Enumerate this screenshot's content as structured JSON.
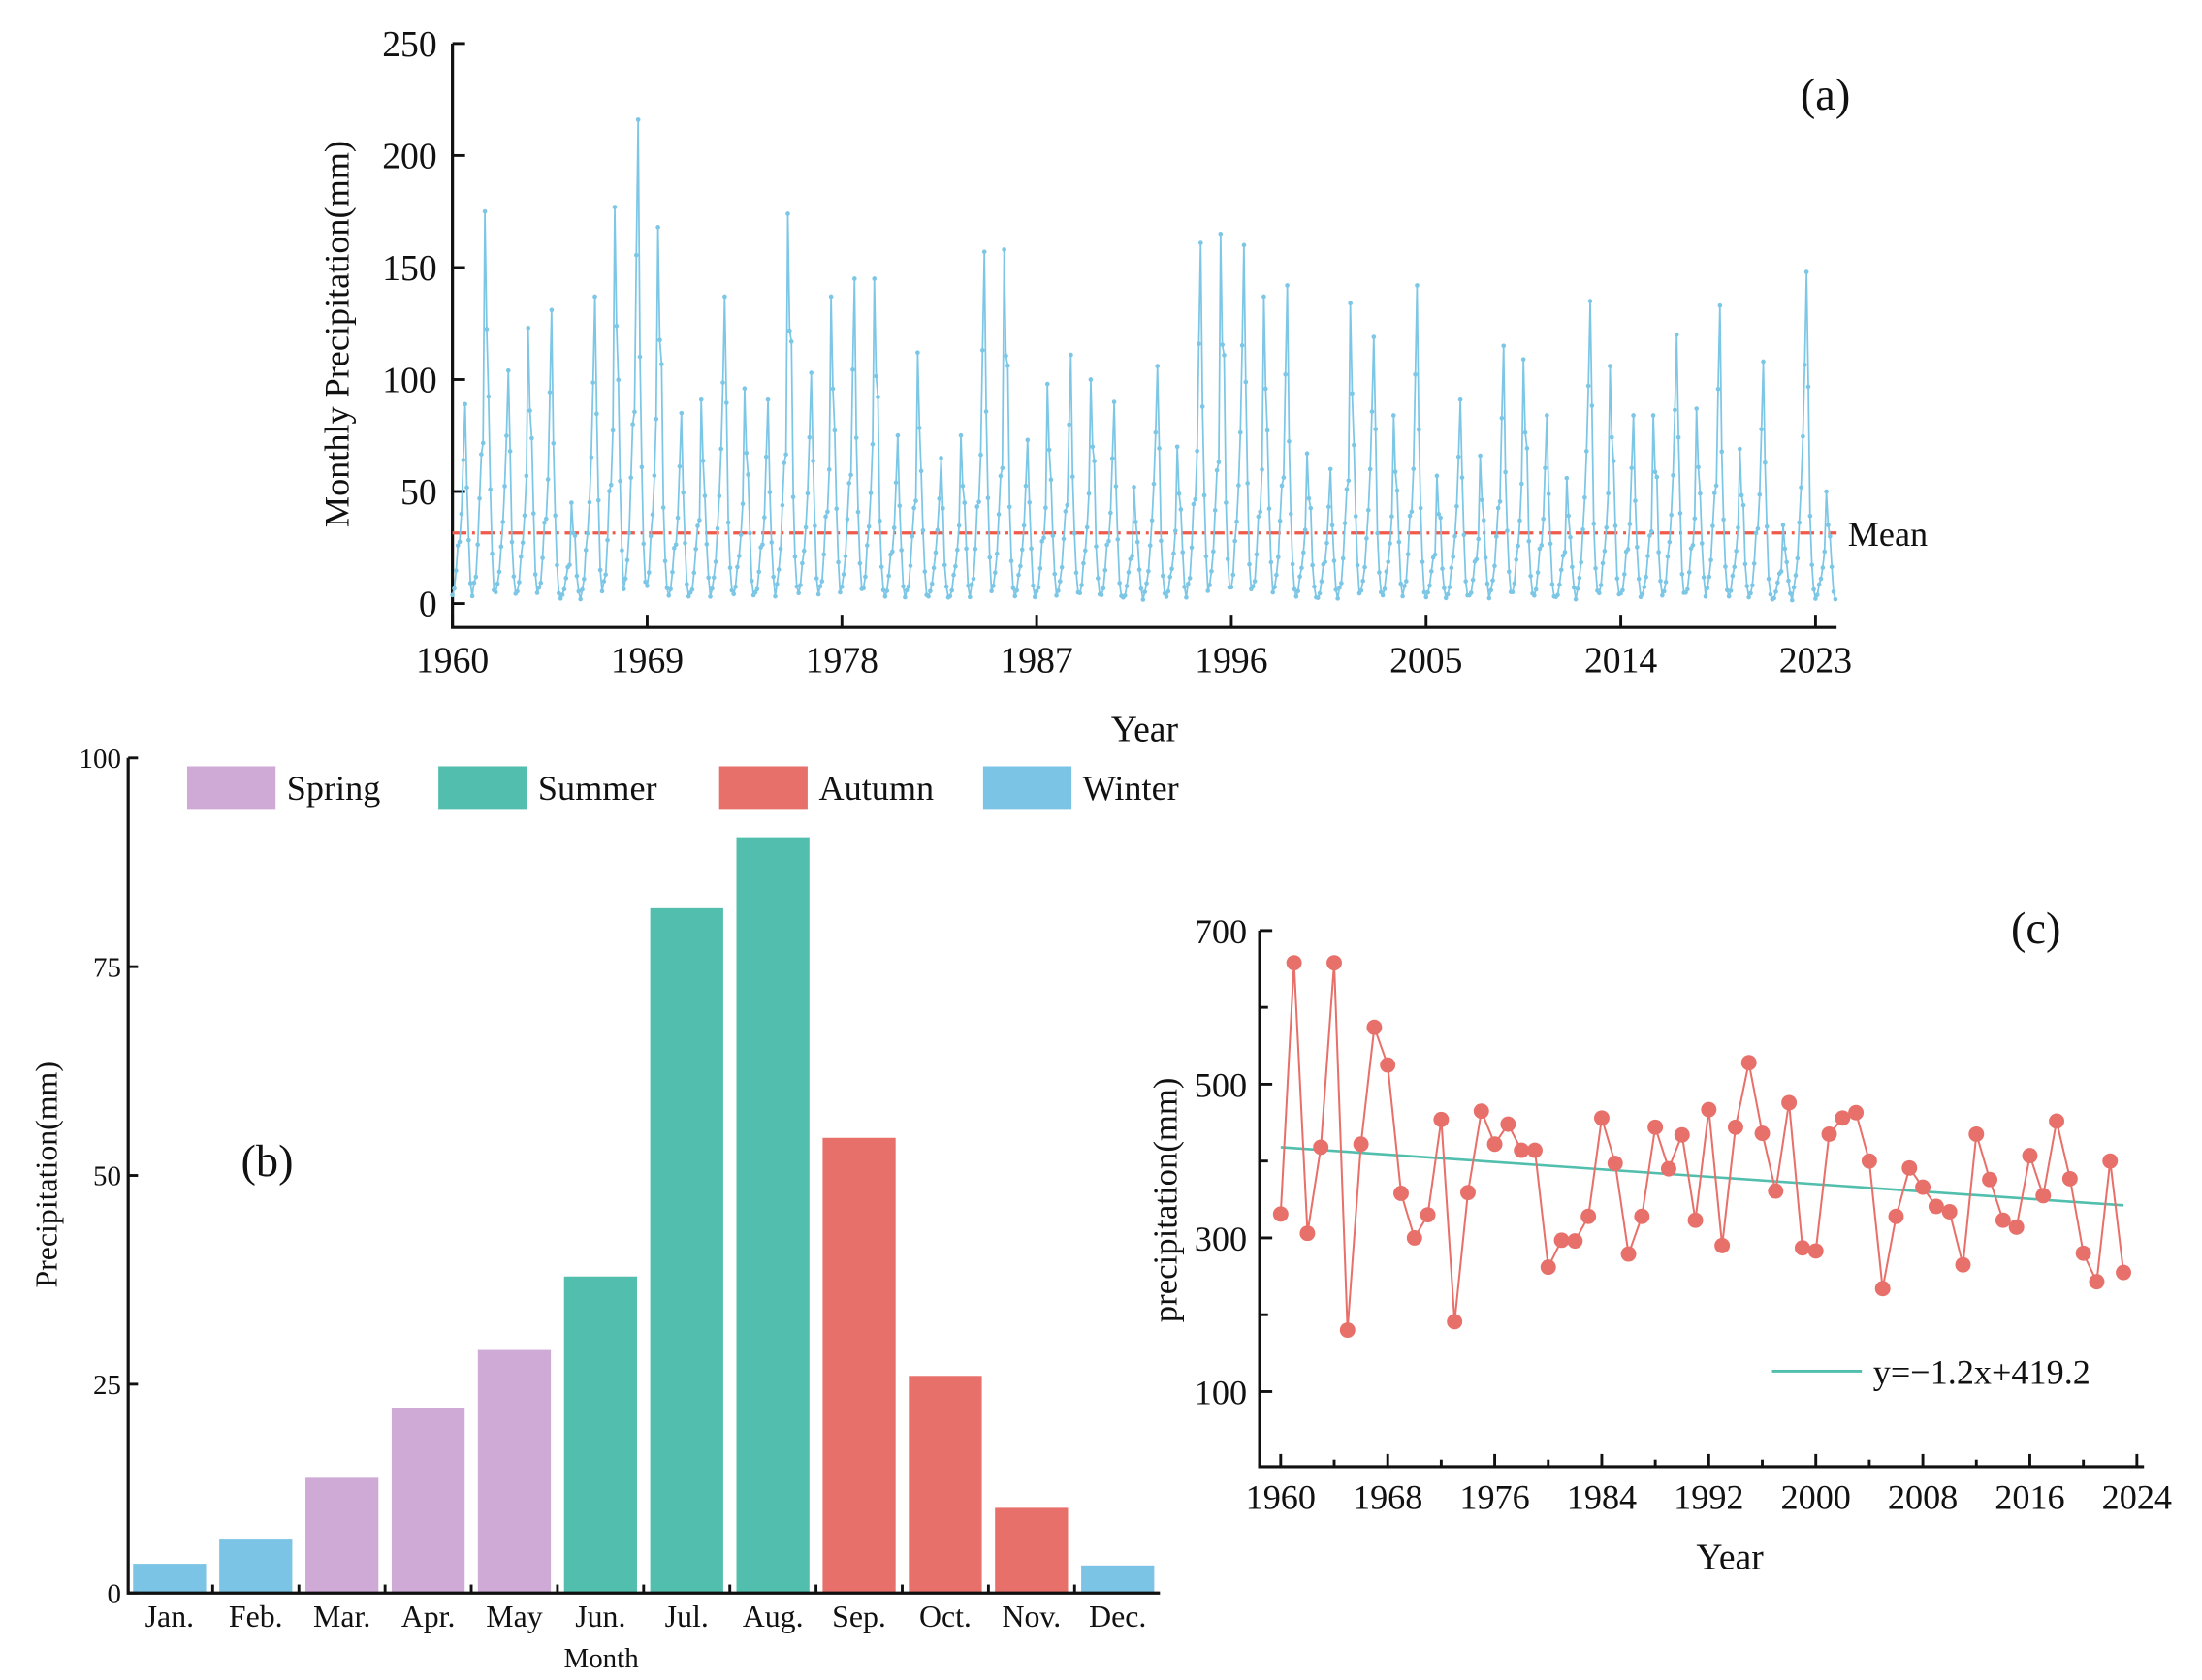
{
  "colors": {
    "monthly_line": "#7cc6e6",
    "mean_line": "#f05a4a",
    "spring": "#cfaad6",
    "summer": "#52bead",
    "autumn": "#e8706a",
    "winter": "#7bc4e5",
    "annual_line": "#e8706a",
    "trend_line": "#52bead"
  },
  "chart_data": [
    {
      "panel": "(a)",
      "type": "line",
      "ylabel": "Monthly Precipitation(mm)",
      "xlabel": "Year",
      "ylim": [
        0,
        250
      ],
      "xlim": [
        1960,
        2023.9
      ],
      "yticks": [
        "0",
        "50",
        "100",
        "150",
        "200",
        "250"
      ],
      "xticks": [
        "1960",
        "1969",
        "1978",
        "1987",
        "1996",
        "2005",
        "2014",
        "2023"
      ],
      "mean_label": "Mean",
      "mean_value": 31.5,
      "series_note_annual_peak_mm": "approximate peak monthly value per year, 1960-2023",
      "years": [
        1960,
        1961,
        1962,
        1963,
        1964,
        1965,
        1966,
        1967,
        1968,
        1969,
        1970,
        1971,
        1972,
        1973,
        1974,
        1975,
        1976,
        1977,
        1978,
        1979,
        1980,
        1981,
        1982,
        1983,
        1984,
        1985,
        1986,
        1987,
        1988,
        1989,
        1990,
        1991,
        1992,
        1993,
        1994,
        1995,
        1996,
        1997,
        1998,
        1999,
        2000,
        2001,
        2002,
        2003,
        2004,
        2005,
        2006,
        2007,
        2008,
        2009,
        2010,
        2011,
        2012,
        2013,
        2014,
        2015,
        2016,
        2017,
        2018,
        2019,
        2020,
        2021,
        2022,
        2023
      ],
      "annual_peak": [
        89,
        175,
        104,
        123,
        131,
        45,
        137,
        177,
        216,
        168,
        85,
        91,
        137,
        96,
        91,
        174,
        103,
        137,
        145,
        145,
        75,
        112,
        65,
        75,
        157,
        158,
        73,
        98,
        111,
        100,
        90,
        52,
        106,
        70,
        161,
        165,
        160,
        137,
        142,
        67,
        60,
        134,
        119,
        84,
        142,
        57,
        91,
        66,
        115,
        109,
        84,
        56,
        135,
        106,
        84,
        84,
        120,
        87,
        133,
        69,
        108,
        35,
        148,
        50
      ]
    },
    {
      "panel": "(b)",
      "type": "bar",
      "ylabel": "Precipitation(mm)",
      "xlabel": "Month",
      "ylim": [
        0,
        100
      ],
      "yticks": [
        "0",
        "25",
        "50",
        "75",
        "100"
      ],
      "categories": [
        "Jan.",
        "Feb.",
        "Mar.",
        "Apr.",
        "May",
        "Jun.",
        "Jul.",
        "Aug.",
        "Sep.",
        "Oct.",
        "Nov.",
        "Dec."
      ],
      "values": [
        3.5,
        6.4,
        13.8,
        22.2,
        29.1,
        37.9,
        82.0,
        90.5,
        54.5,
        26.0,
        10.2,
        3.3
      ],
      "season": [
        "winter",
        "winter",
        "spring",
        "spring",
        "spring",
        "summer",
        "summer",
        "summer",
        "autumn",
        "autumn",
        "autumn",
        "winter"
      ],
      "legend": [
        {
          "key": "spring",
          "label": "Spring"
        },
        {
          "key": "summer",
          "label": "Summer"
        },
        {
          "key": "autumn",
          "label": "Autumn"
        },
        {
          "key": "winter",
          "label": "Winter"
        }
      ],
      "legend_position": "top"
    },
    {
      "panel": "(c)",
      "type": "line",
      "ylabel": "precipitation(mm)",
      "xlabel": "Year",
      "ylim": [
        0,
        700
      ],
      "xlim": [
        1958.5,
        2024.5
      ],
      "yticks": [
        "100",
        "300",
        "500",
        "700"
      ],
      "xticks": [
        "1960",
        "1968",
        "1976",
        "1984",
        "1992",
        "2000",
        "2008",
        "2016",
        "2024"
      ],
      "years": [
        1960,
        1961,
        1962,
        1963,
        1964,
        1965,
        1966,
        1967,
        1968,
        1969,
        1970,
        1971,
        1972,
        1973,
        1974,
        1975,
        1976,
        1977,
        1978,
        1979,
        1980,
        1981,
        1982,
        1983,
        1984,
        1985,
        1986,
        1987,
        1988,
        1989,
        1990,
        1991,
        1992,
        1993,
        1994,
        1995,
        1996,
        1997,
        1998,
        1999,
        2000,
        2001,
        2002,
        2003,
        2004,
        2005,
        2006,
        2007,
        2008,
        2009,
        2010,
        2011,
        2012,
        2013,
        2014,
        2015,
        2016,
        2017,
        2018,
        2019,
        2020,
        2021,
        2022,
        2023
      ],
      "values": [
        331,
        658,
        306,
        418,
        658,
        180,
        422,
        574,
        525,
        358,
        300,
        330,
        454,
        191,
        359,
        465,
        422,
        448,
        414,
        414,
        262,
        297,
        296,
        328,
        456,
        397,
        279,
        328,
        444,
        390,
        434,
        323,
        467,
        290,
        444,
        528,
        436,
        361,
        476,
        287,
        283,
        435,
        456,
        463,
        400,
        234,
        328,
        391,
        366,
        341,
        334,
        265,
        435,
        376,
        323,
        314,
        407,
        355,
        452,
        377,
        280,
        243,
        400,
        255
      ],
      "trend": {
        "slope": -1.2,
        "intercept": 419.2,
        "label": "y=−1.2x+419.2"
      },
      "legend_position": "bottom-right"
    }
  ]
}
